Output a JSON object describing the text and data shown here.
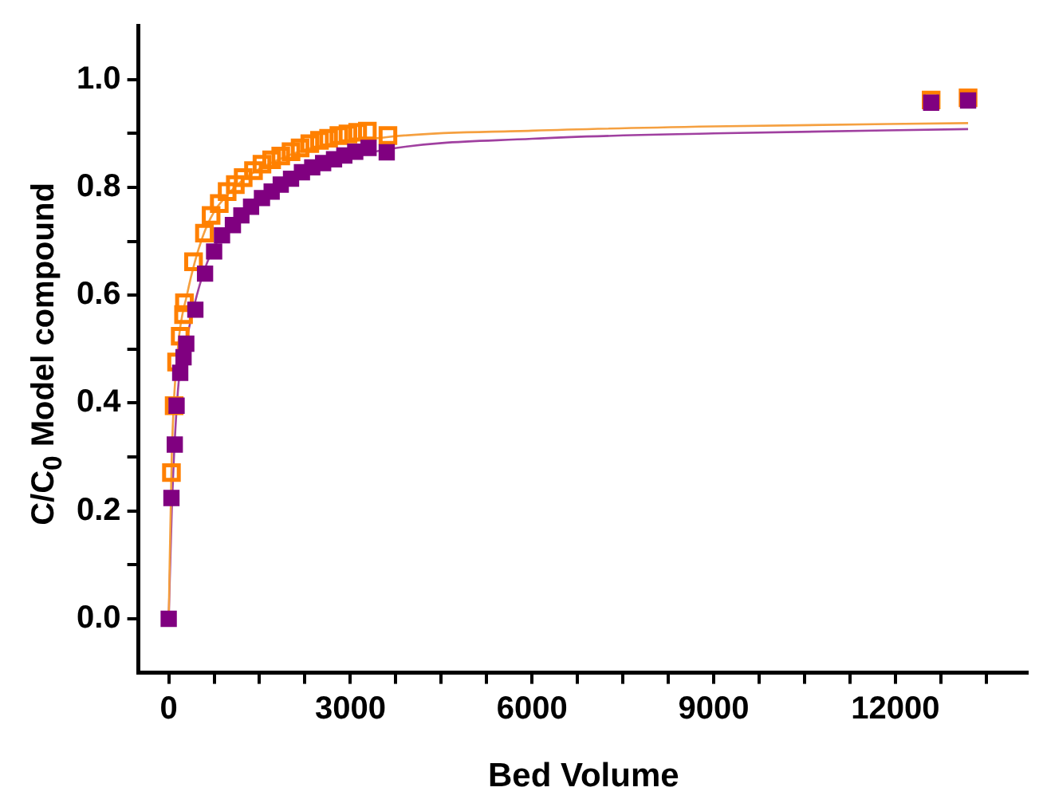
{
  "chart_data": {
    "type": "scatter",
    "xlabel": "Bed Volume",
    "ylabel": "C/C$_{0}$ Model compound",
    "marker": "square",
    "legend": false,
    "grid": false,
    "xlim": [
      -500,
      14200
    ],
    "ylim": [
      -0.1,
      1.1
    ],
    "xticks": [
      0,
      {
        "value": 750,
        "label": null
      },
      {
        "value": 1500,
        "label": null
      },
      {
        "value": 2250,
        "label": null
      },
      3000,
      {
        "value": 3750,
        "label": null
      },
      {
        "value": 4500,
        "label": null
      },
      {
        "value": 5250,
        "label": null
      },
      6000,
      {
        "value": 6750,
        "label": null
      },
      {
        "value": 7500,
        "label": null
      },
      {
        "value": 8250,
        "label": null
      },
      9000,
      {
        "value": 9750,
        "label": null
      },
      {
        "value": 10500,
        "label": null
      },
      {
        "value": 11250,
        "label": null
      },
      12000,
      {
        "value": 12750,
        "label": null
      },
      {
        "value": 13500,
        "label": null
      }
    ],
    "yticks": [
      {
        "value": 0,
        "label": "0.0"
      },
      {
        "value": 0.1,
        "label": null
      },
      {
        "value": 0.2,
        "label": "0.2"
      },
      {
        "value": 0.3,
        "label": null
      },
      {
        "value": 0.4,
        "label": "0.4"
      },
      {
        "value": 0.5,
        "label": null
      },
      {
        "value": 0.6,
        "label": "0.6"
      },
      {
        "value": 0.7,
        "label": null
      },
      {
        "value": 0.8,
        "label": "0.8"
      },
      {
        "value": 0.9,
        "label": null
      },
      {
        "value": 1.0,
        "label": "1.0"
      }
    ],
    "series": [
      {
        "type": "line",
        "marker": "none",
        "color": "#f5a040",
        "x": [
          0,
          50,
          150,
          300,
          600,
          1000,
          2000,
          3600,
          6000,
          9000,
          13200
        ],
        "values": [
          0,
          0.3,
          0.5,
          0.6,
          0.72,
          0.79,
          0.86,
          0.893,
          0.905,
          0.913,
          0.919
        ]
      },
      {
        "type": "line",
        "marker": "none",
        "color": "#a040a0",
        "x": [
          0,
          50,
          150,
          300,
          600,
          1000,
          2000,
          3600,
          6000,
          9000,
          13200
        ],
        "values": [
          0,
          0.2,
          0.42,
          0.52,
          0.65,
          0.73,
          0.82,
          0.87,
          0.89,
          0.9,
          0.908
        ]
      },
      {
        "type": "scatter",
        "color": "#ff8000",
        "x": [
          45,
          90,
          130,
          190,
          245,
          260,
          410,
          590,
          700,
          835,
          965,
          1100,
          1230,
          1400,
          1540,
          1700,
          1850,
          2020,
          2170,
          2330,
          2490,
          2640,
          2810,
          2960,
          3120,
          3280,
          3620,
          12590,
          13200
        ],
        "values": [
          0.271,
          0.395,
          0.476,
          0.524,
          0.564,
          0.586,
          0.662,
          0.715,
          0.748,
          0.77,
          0.792,
          0.805,
          0.818,
          0.831,
          0.843,
          0.851,
          0.858,
          0.866,
          0.873,
          0.881,
          0.887,
          0.891,
          0.896,
          0.899,
          0.902,
          0.904,
          0.896,
          0.962,
          0.966
        ]
      },
      {
        "type": "scatter",
        "color": "#800080",
        "x": [
          0,
          45,
          100,
          130,
          190,
          245,
          290,
          440,
          600,
          750,
          880,
          1060,
          1200,
          1360,
          1540,
          1700,
          1850,
          2020,
          2200,
          2370,
          2550,
          2730,
          2900,
          3080,
          3300,
          3600,
          12590,
          13200
        ],
        "values": [
          0,
          0.224,
          0.323,
          0.395,
          0.456,
          0.485,
          0.51,
          0.573,
          0.64,
          0.681,
          0.711,
          0.73,
          0.748,
          0.764,
          0.78,
          0.792,
          0.805,
          0.816,
          0.828,
          0.837,
          0.845,
          0.852,
          0.859,
          0.866,
          0.873,
          0.865,
          0.957,
          0.961
        ]
      }
    ]
  }
}
